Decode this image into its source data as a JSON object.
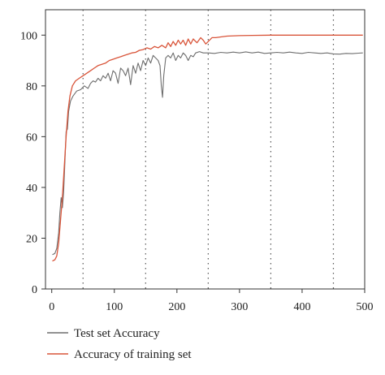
{
  "chart_data": {
    "type": "line",
    "title": "",
    "xlabel": "",
    "ylabel": "",
    "xlim": [
      -10,
      500
    ],
    "ylim": [
      0,
      110
    ],
    "xticks": [
      0,
      100,
      200,
      300,
      400,
      500
    ],
    "yticks": [
      0,
      20,
      40,
      60,
      80,
      100
    ],
    "vertical_dotted_lines_x": [
      50,
      150,
      250,
      350,
      450
    ],
    "legend_position": "bottom-left",
    "series": [
      {
        "name": "Test set Accuracy",
        "color": "#6e6e6e",
        "points": [
          [
            1,
            13.5
          ],
          [
            5,
            14
          ],
          [
            8,
            16
          ],
          [
            11,
            22
          ],
          [
            13,
            30
          ],
          [
            15,
            36
          ],
          [
            17,
            32
          ],
          [
            19,
            38
          ],
          [
            21,
            50
          ],
          [
            23,
            62
          ],
          [
            25,
            63
          ],
          [
            27,
            70
          ],
          [
            30,
            74
          ],
          [
            34,
            76
          ],
          [
            40,
            78
          ],
          [
            46,
            78.5
          ],
          [
            52,
            80
          ],
          [
            58,
            79
          ],
          [
            62,
            81
          ],
          [
            66,
            82
          ],
          [
            70,
            81.5
          ],
          [
            74,
            83
          ],
          [
            78,
            82
          ],
          [
            82,
            84
          ],
          [
            86,
            83
          ],
          [
            90,
            85
          ],
          [
            94,
            82
          ],
          [
            98,
            86
          ],
          [
            102,
            85
          ],
          [
            106,
            81
          ],
          [
            110,
            87
          ],
          [
            114,
            86
          ],
          [
            118,
            84
          ],
          [
            122,
            87
          ],
          [
            126,
            80.5
          ],
          [
            130,
            88
          ],
          [
            134,
            85
          ],
          [
            138,
            89
          ],
          [
            142,
            86
          ],
          [
            146,
            90
          ],
          [
            150,
            88
          ],
          [
            154,
            91
          ],
          [
            158,
            89
          ],
          [
            162,
            92
          ],
          [
            166,
            91
          ],
          [
            170,
            90
          ],
          [
            173,
            88
          ],
          [
            175,
            80
          ],
          [
            177,
            75.5
          ],
          [
            179,
            84
          ],
          [
            182,
            91
          ],
          [
            186,
            92
          ],
          [
            190,
            91
          ],
          [
            194,
            93
          ],
          [
            198,
            90
          ],
          [
            202,
            92
          ],
          [
            206,
            91
          ],
          [
            210,
            93
          ],
          [
            214,
            92
          ],
          [
            218,
            90
          ],
          [
            222,
            92
          ],
          [
            226,
            91.5
          ],
          [
            230,
            93
          ],
          [
            236,
            93.5
          ],
          [
            242,
            93
          ],
          [
            250,
            93
          ],
          [
            260,
            92.8
          ],
          [
            270,
            93.2
          ],
          [
            280,
            93
          ],
          [
            290,
            93.3
          ],
          [
            300,
            93
          ],
          [
            310,
            93.4
          ],
          [
            320,
            93
          ],
          [
            330,
            93.3
          ],
          [
            340,
            92.8
          ],
          [
            350,
            93
          ],
          [
            360,
            93.2
          ],
          [
            370,
            93
          ],
          [
            380,
            93.3
          ],
          [
            390,
            93
          ],
          [
            400,
            92.8
          ],
          [
            410,
            93.2
          ],
          [
            420,
            93
          ],
          [
            430,
            92.8
          ],
          [
            440,
            93
          ],
          [
            450,
            92.6
          ],
          [
            460,
            92.5
          ],
          [
            470,
            92.8
          ],
          [
            480,
            92.7
          ],
          [
            490,
            92.9
          ],
          [
            497,
            93
          ]
        ]
      },
      {
        "name": "Accuracy of training set",
        "color": "#d9553a",
        "points": [
          [
            1,
            11
          ],
          [
            5,
            11.5
          ],
          [
            8,
            13
          ],
          [
            11,
            18
          ],
          [
            14,
            27
          ],
          [
            17,
            36
          ],
          [
            20,
            48
          ],
          [
            23,
            60
          ],
          [
            26,
            70
          ],
          [
            29,
            76
          ],
          [
            33,
            80
          ],
          [
            38,
            82
          ],
          [
            44,
            83
          ],
          [
            50,
            84
          ],
          [
            56,
            85
          ],
          [
            62,
            86
          ],
          [
            68,
            87
          ],
          [
            74,
            88
          ],
          [
            80,
            88.5
          ],
          [
            86,
            89
          ],
          [
            92,
            90
          ],
          [
            98,
            90.5
          ],
          [
            104,
            91
          ],
          [
            110,
            91.5
          ],
          [
            116,
            92
          ],
          [
            122,
            92.5
          ],
          [
            128,
            93
          ],
          [
            134,
            93.2
          ],
          [
            140,
            94
          ],
          [
            146,
            94.3
          ],
          [
            152,
            95
          ],
          [
            158,
            94.5
          ],
          [
            164,
            95.5
          ],
          [
            170,
            95
          ],
          [
            176,
            96
          ],
          [
            182,
            95
          ],
          [
            186,
            97
          ],
          [
            190,
            95.5
          ],
          [
            194,
            97.5
          ],
          [
            198,
            96
          ],
          [
            202,
            98
          ],
          [
            206,
            96.5
          ],
          [
            210,
            98
          ],
          [
            214,
            96
          ],
          [
            218,
            98.5
          ],
          [
            222,
            96.5
          ],
          [
            226,
            98.5
          ],
          [
            232,
            97
          ],
          [
            238,
            99
          ],
          [
            242,
            98
          ],
          [
            246,
            96.5
          ],
          [
            250,
            97.5
          ],
          [
            256,
            99
          ],
          [
            262,
            99
          ],
          [
            270,
            99.3
          ],
          [
            280,
            99.6
          ],
          [
            300,
            99.8
          ],
          [
            320,
            99.9
          ],
          [
            350,
            100
          ],
          [
            400,
            100
          ],
          [
            450,
            100
          ],
          [
            497,
            100
          ]
        ]
      }
    ]
  }
}
